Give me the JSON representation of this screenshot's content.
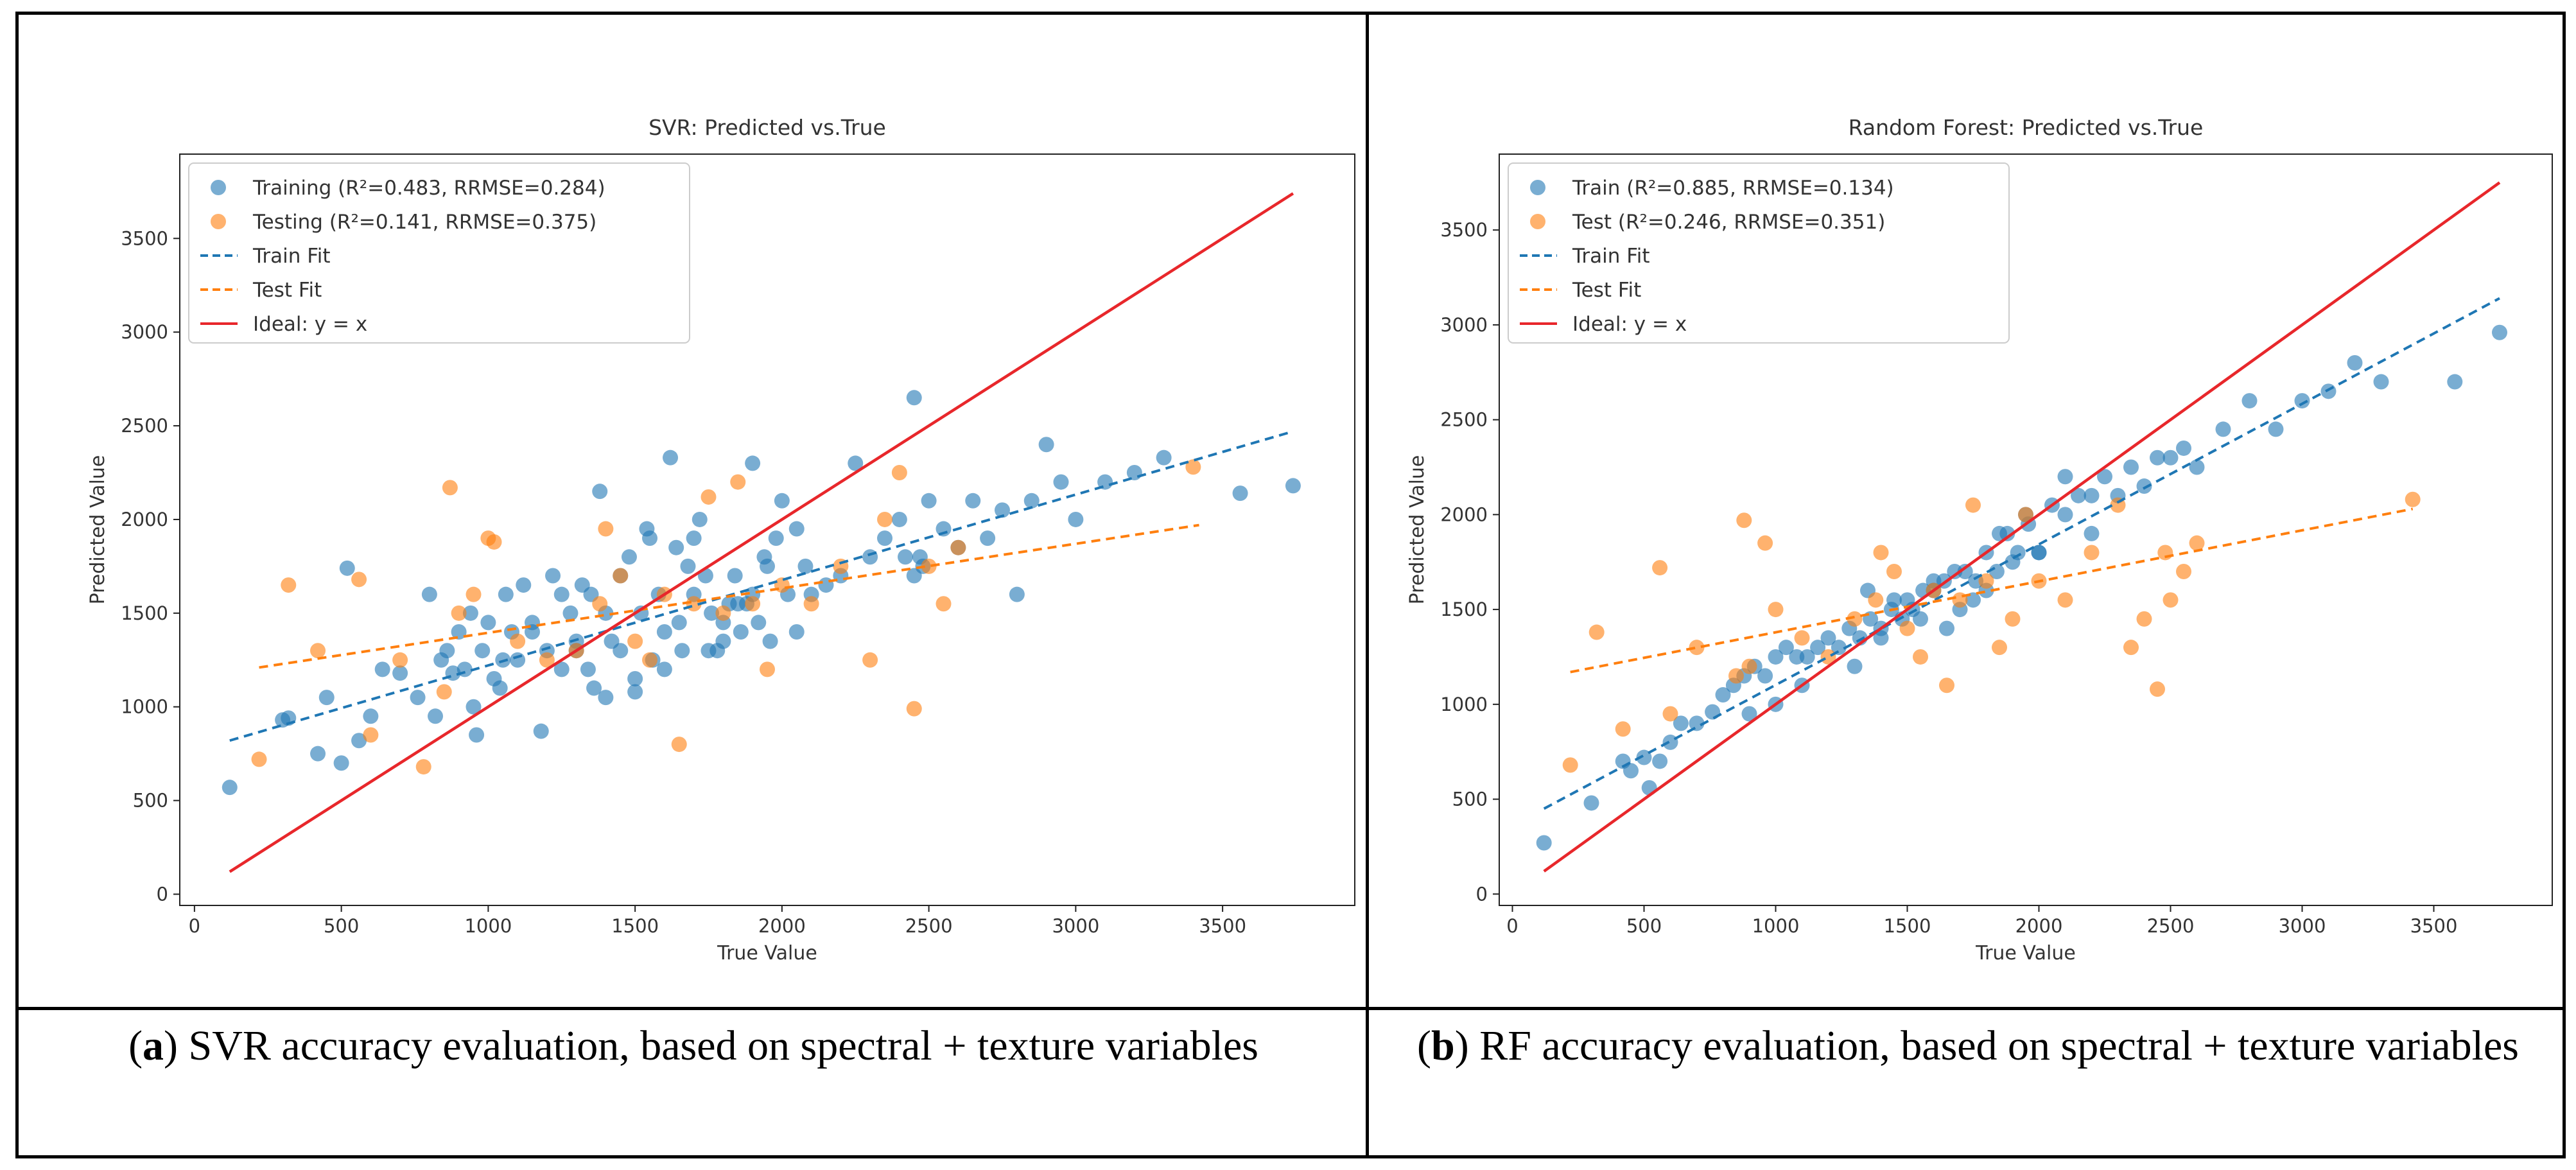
{
  "chart_data": [
    {
      "type": "scatter",
      "title": "SVR: Predicted vs.True",
      "xlabel": "True Value",
      "ylabel": "Predicted Value",
      "xlim": [
        -50,
        3950
      ],
      "ylim": [
        -60,
        3950
      ],
      "xticks": [
        0,
        500,
        1000,
        1500,
        2000,
        2500,
        3000,
        3500
      ],
      "yticks": [
        0,
        500,
        1000,
        1500,
        2000,
        2500,
        3000,
        3500
      ],
      "legend": [
        "Training (R²=0.483, RRMSE=0.284)",
        "Testing  (R²=0.141, RRMSE=0.375)",
        "Train Fit",
        "Test Fit",
        "Ideal: y = x"
      ],
      "legend_position": "top-left",
      "series": [
        {
          "name": "Training (R²=0.483, RRMSE=0.284)",
          "kind": "scatter",
          "color": "#1f77b4",
          "x": [
            120,
            300,
            320,
            420,
            450,
            500,
            520,
            560,
            600,
            640,
            700,
            760,
            800,
            820,
            840,
            860,
            880,
            900,
            920,
            940,
            960,
            980,
            1000,
            1020,
            1040,
            1060,
            1080,
            1100,
            1120,
            1150,
            1180,
            1200,
            1220,
            1250,
            1280,
            1300,
            1320,
            1340,
            1360,
            1380,
            1400,
            1420,
            1450,
            1480,
            1500,
            1520,
            1540,
            1560,
            1580,
            1600,
            1620,
            1640,
            1660,
            1680,
            1700,
            1720,
            1740,
            1760,
            1780,
            1800,
            1820,
            1840,
            1860,
            1880,
            1900,
            1920,
            1940,
            1960,
            1980,
            2000,
            2020,
            2050,
            2080,
            2100,
            2150,
            2200,
            2250,
            2300,
            2350,
            2400,
            2420,
            2450,
            2480,
            2500,
            2550,
            2600,
            2650,
            2700,
            2750,
            2800,
            2850,
            2900,
            2950,
            3000,
            3100,
            3200,
            3300,
            3560,
            3740,
            1350,
            1450,
            1550,
            1650,
            1750,
            1850,
            1950,
            2050,
            1250,
            1150,
            1050,
            950,
            2450,
            2470,
            1900,
            1800,
            1700,
            1600,
            1500,
            1400,
            1300
          ],
          "y": [
            570,
            930,
            940,
            750,
            1050,
            700,
            1740,
            820,
            950,
            1200,
            1180,
            1050,
            1600,
            950,
            1250,
            1300,
            1180,
            1400,
            1200,
            1500,
            850,
            1300,
            1450,
            1150,
            1100,
            1600,
            1400,
            1250,
            1650,
            1450,
            870,
            1300,
            1700,
            1200,
            1500,
            1350,
            1650,
            1200,
            1100,
            2150,
            1500,
            1350,
            1300,
            1800,
            1080,
            1500,
            1950,
            1250,
            1600,
            1400,
            2330,
            1850,
            1300,
            1750,
            1600,
            2000,
            1700,
            1500,
            1300,
            1350,
            1550,
            1700,
            1400,
            1550,
            2300,
            1450,
            1800,
            1350,
            1900,
            2100,
            1600,
            1400,
            1750,
            1600,
            1650,
            1700,
            2300,
            1800,
            1900,
            2000,
            1800,
            2650,
            1750,
            2100,
            1950,
            1850,
            2100,
            1900,
            2050,
            1600,
            2100,
            2400,
            2200,
            2000,
            2200,
            2250,
            2330,
            2140,
            2180,
            1600,
            1700,
            1900,
            1450,
            1300,
            1550,
            1750,
            1950,
            1600,
            1400,
            1250,
            1000,
            1700,
            1800,
            1600,
            1450,
            1900,
            1200,
            1150,
            1050,
            1300
          ],
          "opacity": 0.6
        },
        {
          "name": "Testing  (R²=0.141, RRMSE=0.375)",
          "kind": "scatter",
          "color": "#ff7f0e",
          "x": [
            220,
            320,
            420,
            560,
            600,
            700,
            780,
            850,
            870,
            900,
            950,
            1000,
            1020,
            1100,
            1200,
            1300,
            1380,
            1400,
            1450,
            1500,
            1550,
            1600,
            1650,
            1700,
            1750,
            1800,
            1850,
            1900,
            1950,
            2000,
            2100,
            2200,
            2300,
            2350,
            2400,
            2450,
            2500,
            2550,
            2600,
            3400
          ],
          "y": [
            720,
            1650,
            1300,
            1680,
            850,
            1250,
            680,
            1080,
            2170,
            1500,
            1600,
            1900,
            1880,
            1350,
            1250,
            1300,
            1550,
            1950,
            1700,
            1350,
            1250,
            1600,
            800,
            1550,
            2120,
            1500,
            2200,
            1550,
            1200,
            1650,
            1550,
            1750,
            1250,
            2000,
            2250,
            990,
            1750,
            1550,
            1850,
            2280
          ],
          "opacity": 0.6
        },
        {
          "name": "Train Fit",
          "kind": "line",
          "dash": true,
          "color": "#1f77b4",
          "x": [
            120,
            3740
          ],
          "y": [
            820,
            2470
          ]
        },
        {
          "name": "Test Fit",
          "kind": "line",
          "dash": true,
          "color": "#ff7f0e",
          "x": [
            220,
            3420
          ],
          "y": [
            1210,
            1970
          ]
        },
        {
          "name": "Ideal: y = x",
          "kind": "line",
          "dash": false,
          "color": "#e8272b",
          "x": [
            120,
            3740
          ],
          "y": [
            120,
            3740
          ]
        }
      ],
      "caption": {
        "bold": "a",
        "text": " SVR accuracy evaluation, based on spectral + texture variables"
      }
    },
    {
      "type": "scatter",
      "title": "Random Forest: Predicted vs.True",
      "xlabel": "True Value",
      "ylabel": "Predicted Value",
      "xlim": [
        -50,
        3950
      ],
      "ylim": [
        -60,
        3900
      ],
      "xticks": [
        0,
        500,
        1000,
        1500,
        2000,
        2500,
        3000,
        3500
      ],
      "yticks": [
        0,
        500,
        1000,
        1500,
        2000,
        2500,
        3000,
        3500
      ],
      "legend": [
        "Train (R²=0.885, RRMSE=0.134)",
        "Test  (R²=0.246, RRMSE=0.351)",
        "Train Fit",
        "Test Fit",
        "Ideal: y = x"
      ],
      "legend_position": "top-left",
      "series": [
        {
          "name": "Train (R²=0.885, RRMSE=0.134)",
          "kind": "scatter",
          "color": "#1f77b4",
          "x": [
            120,
            300,
            420,
            450,
            500,
            520,
            560,
            600,
            640,
            700,
            760,
            800,
            840,
            880,
            920,
            960,
            1000,
            1040,
            1080,
            1120,
            1160,
            1200,
            1240,
            1280,
            1320,
            1360,
            1400,
            1440,
            1480,
            1520,
            1560,
            1600,
            1640,
            1680,
            1720,
            1760,
            1800,
            1840,
            1880,
            1920,
            1960,
            2000,
            2050,
            2100,
            2150,
            2200,
            2250,
            2300,
            2350,
            2400,
            2450,
            2500,
            2550,
            2600,
            2700,
            2800,
            2900,
            3000,
            3100,
            3200,
            3300,
            3580,
            3750,
            1300,
            1400,
            1500,
            1600,
            1700,
            1800,
            1900,
            2000,
            2100,
            2200,
            1100,
            1000,
            900,
            1350,
            1450,
            1550,
            1650,
            1750,
            1850,
            1950
          ],
          "y": [
            270,
            480,
            700,
            650,
            720,
            560,
            700,
            800,
            900,
            900,
            960,
            1050,
            1100,
            1150,
            1200,
            1150,
            1250,
            1300,
            1250,
            1250,
            1300,
            1350,
            1300,
            1400,
            1350,
            1450,
            1400,
            1500,
            1450,
            1500,
            1600,
            1600,
            1650,
            1700,
            1700,
            1650,
            1800,
            1700,
            1900,
            1800,
            1950,
            1800,
            2050,
            2000,
            2100,
            2100,
            2200,
            2100,
            2250,
            2150,
            2300,
            2300,
            2350,
            2250,
            2450,
            2600,
            2450,
            2600,
            2650,
            2800,
            2700,
            2700,
            2960,
            1200,
            1350,
            1550,
            1650,
            1500,
            1600,
            1750,
            1800,
            2200,
            1900,
            1100,
            1000,
            950,
            1600,
            1550,
            1450,
            1400,
            1550,
            1900,
            2000
          ],
          "opacity": 0.6
        },
        {
          "name": "Test  (R²=0.246, RRMSE=0.351)",
          "kind": "scatter",
          "color": "#ff7f0e",
          "x": [
            220,
            320,
            420,
            560,
            600,
            700,
            850,
            880,
            900,
            960,
            1000,
            1100,
            1200,
            1300,
            1380,
            1400,
            1450,
            1500,
            1550,
            1600,
            1650,
            1700,
            1750,
            1800,
            1850,
            1900,
            1950,
            2000,
            2100,
            2200,
            2300,
            2350,
            2400,
            2450,
            2480,
            2500,
            2550,
            2600,
            3420
          ],
          "y": [
            680,
            1380,
            870,
            1720,
            950,
            1300,
            1150,
            1970,
            1200,
            1850,
            1500,
            1350,
            1250,
            1450,
            1550,
            1800,
            1700,
            1400,
            1250,
            1600,
            1100,
            1550,
            2050,
            1650,
            1300,
            1450,
            2000,
            1650,
            1550,
            1800,
            2050,
            1300,
            1450,
            1080,
            1800,
            1550,
            1700,
            1850,
            2080
          ],
          "opacity": 0.6
        },
        {
          "name": "Train Fit",
          "kind": "line",
          "dash": true,
          "color": "#1f77b4",
          "x": [
            120,
            3750
          ],
          "y": [
            450,
            3140
          ]
        },
        {
          "name": "Test Fit",
          "kind": "line",
          "dash": true,
          "color": "#ff7f0e",
          "x": [
            220,
            3420
          ],
          "y": [
            1170,
            2030
          ]
        },
        {
          "name": "Ideal: y = x",
          "kind": "line",
          "dash": false,
          "color": "#e8272b",
          "x": [
            120,
            3750
          ],
          "y": [
            120,
            3750
          ]
        }
      ],
      "caption": {
        "bold": "b",
        "text": " RF accuracy evaluation, based on spectral + texture variables"
      }
    }
  ]
}
